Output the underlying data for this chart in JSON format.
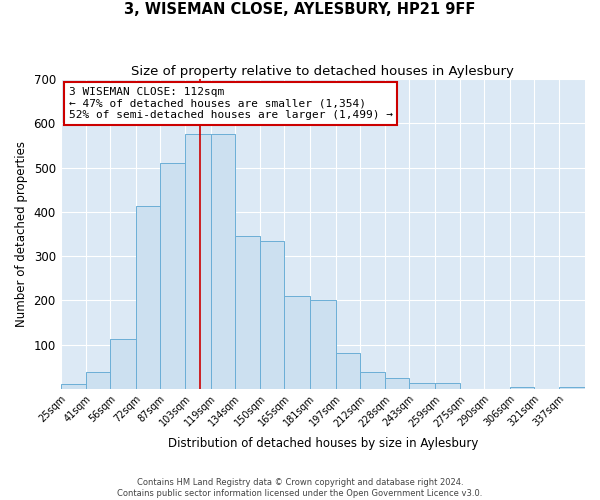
{
  "title1": "3, WISEMAN CLOSE, AYLESBURY, HP21 9FF",
  "title2": "Size of property relative to detached houses in Aylesbury",
  "xlabel": "Distribution of detached houses by size in Aylesbury",
  "ylabel": "Number of detached properties",
  "bin_edges": [
    25,
    41,
    56,
    72,
    87,
    103,
    119,
    134,
    150,
    165,
    181,
    197,
    212,
    228,
    243,
    259,
    275,
    290,
    306,
    321,
    337,
    353
  ],
  "bin_labels": [
    "25sqm",
    "41sqm",
    "56sqm",
    "72sqm",
    "87sqm",
    "103sqm",
    "119sqm",
    "134sqm",
    "150sqm",
    "165sqm",
    "181sqm",
    "197sqm",
    "212sqm",
    "228sqm",
    "243sqm",
    "259sqm",
    "275sqm",
    "290sqm",
    "306sqm",
    "321sqm",
    "337sqm"
  ],
  "counts": [
    10,
    38,
    112,
    413,
    510,
    575,
    575,
    345,
    335,
    210,
    200,
    80,
    37,
    25,
    13,
    13,
    0,
    0,
    5,
    0,
    5
  ],
  "bar_color": "#cce0f0",
  "bar_edge_color": "#6baed6",
  "vline_x": 112,
  "vline_color": "#cc0000",
  "annotation_title": "3 WISEMAN CLOSE: 112sqm",
  "annotation_line1": "← 47% of detached houses are smaller (1,354)",
  "annotation_line2": "52% of semi-detached houses are larger (1,499) →",
  "annotation_box_color": "#cc0000",
  "annotation_bg": "#ffffff",
  "ylim": [
    0,
    700
  ],
  "yticks": [
    0,
    100,
    200,
    300,
    400,
    500,
    600,
    700
  ],
  "background_color": "#dce9f5",
  "footer1": "Contains HM Land Registry data © Crown copyright and database right 2024.",
  "footer2": "Contains public sector information licensed under the Open Government Licence v3.0.",
  "title_fontsize": 10.5,
  "subtitle_fontsize": 9.5
}
